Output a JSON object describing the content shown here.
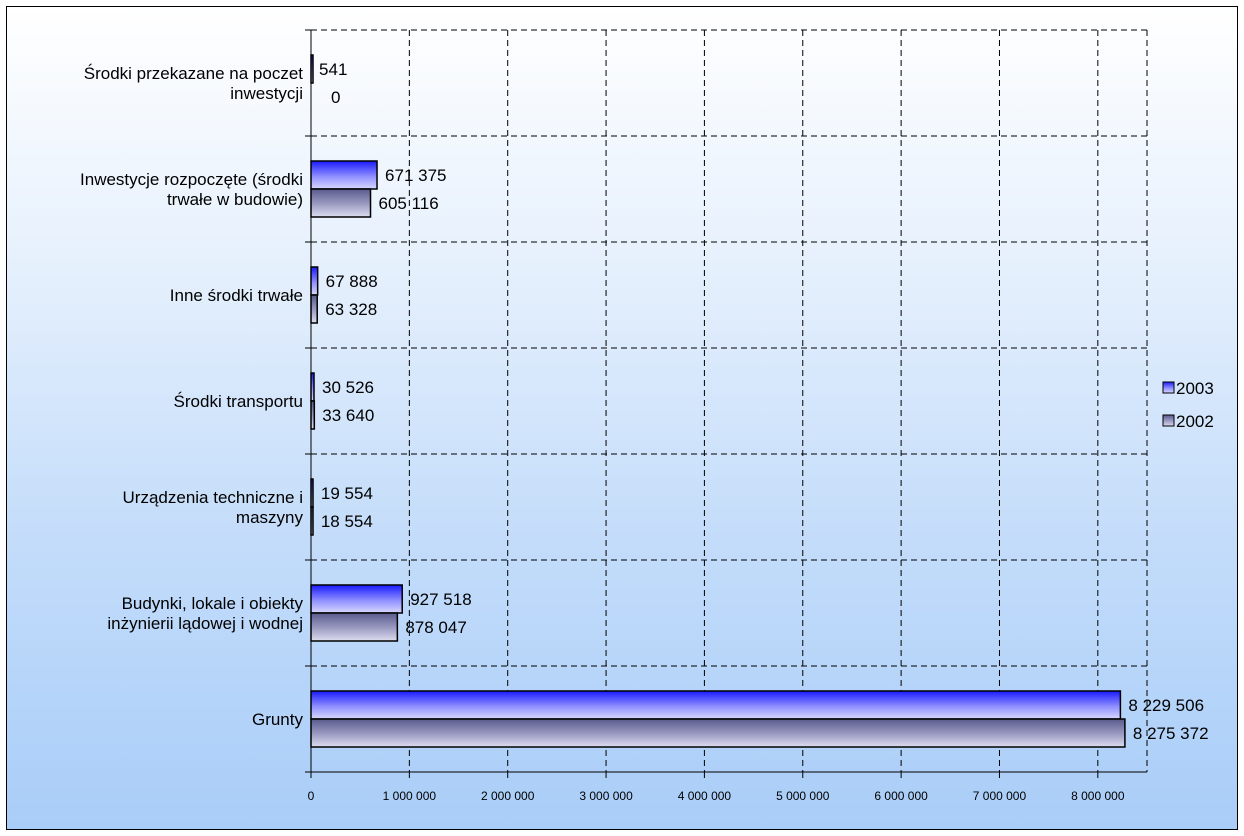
{
  "chart_data": {
    "type": "bar",
    "orientation": "horizontal",
    "categories": [
      [
        "Grunty"
      ],
      [
        "Budynki, lokale i obiekty",
        "inżynierii lądowej i wodnej"
      ],
      [
        "Urządzenia techniczne i",
        "maszyny"
      ],
      [
        "Środki transportu"
      ],
      [
        "Inne środki trwałe"
      ],
      [
        "Inwestycje rozpoczęte  (środki",
        "trwałe w budowie)"
      ],
      [
        "Środki przekazane na poczet",
        "inwestycji"
      ]
    ],
    "series": [
      {
        "name": "2003",
        "values": [
          8229506,
          927518,
          19554,
          30526,
          67888,
          671375,
          541
        ],
        "labels": [
          "8 229 506",
          "927 518",
          "19 554",
          "30 526",
          "67 888",
          "671 375",
          "541"
        ],
        "color": "#4d4dff"
      },
      {
        "name": "2002",
        "values": [
          8275372,
          878047,
          18554,
          33640,
          63328,
          605116,
          0
        ],
        "labels": [
          "8 275 372",
          "878 047",
          "18 554",
          "33 640",
          "63 328",
          "605 116",
          "0"
        ],
        "color": "#8080b0"
      }
    ],
    "xlim": [
      0,
      8500000
    ],
    "xticks": [
      0,
      1000000,
      2000000,
      3000000,
      4000000,
      5000000,
      6000000,
      7000000,
      8000000
    ],
    "xtick_labels": [
      "0",
      "1 000 000",
      "2 000 000",
      "3 000 000",
      "4 000 000",
      "5 000 000",
      "6 000 000",
      "7 000 000",
      "8 000 000"
    ],
    "grid": true,
    "legend_position": "right",
    "title": "",
    "xlabel": "",
    "ylabel": ""
  }
}
